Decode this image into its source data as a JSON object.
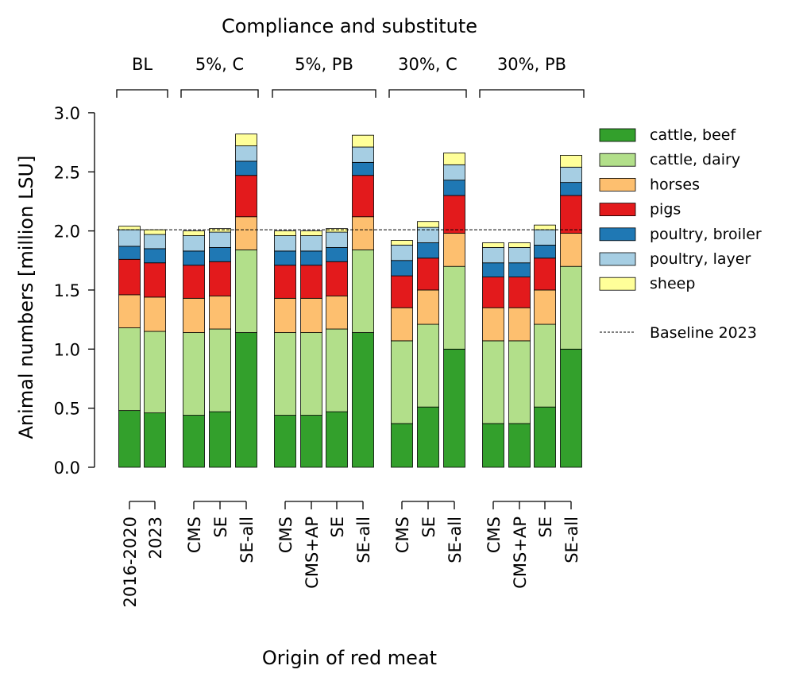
{
  "chart_data": {
    "type": "bar",
    "stacked": true,
    "title": "Compliance and substitute",
    "xlabel": "Origin of red meat",
    "ylabel": "Animal numbers [million LSU]",
    "ylim": [
      0,
      3.0
    ],
    "yticks": [
      "0.0",
      "0.5",
      "1.0",
      "1.5",
      "2.0",
      "2.5",
      "3.0"
    ],
    "groups": [
      {
        "label": "BL",
        "categories": [
          "2016-2020",
          "2023"
        ]
      },
      {
        "label": "5%, C",
        "categories": [
          "CMS",
          "SE",
          "SE-all"
        ]
      },
      {
        "label": "5%, PB",
        "categories": [
          "CMS",
          "CMS+AP",
          "SE",
          "SE-all"
        ]
      },
      {
        "label": "30%, C",
        "categories": [
          "CMS",
          "SE",
          "SE-all"
        ]
      },
      {
        "label": "30%, PB",
        "categories": [
          "CMS",
          "CMS+AP",
          "SE",
          "SE-all"
        ]
      }
    ],
    "series": [
      {
        "name": "cattle, beef",
        "color": "#33a02c",
        "values": [
          0.48,
          0.46,
          0.44,
          0.47,
          1.14,
          0.44,
          0.44,
          0.47,
          1.14,
          0.37,
          0.51,
          1.0,
          0.37,
          0.37,
          0.51,
          1.0
        ]
      },
      {
        "name": "cattle, dairy",
        "color": "#b2df8a",
        "values": [
          0.7,
          0.69,
          0.7,
          0.7,
          0.7,
          0.7,
          0.7,
          0.7,
          0.7,
          0.7,
          0.7,
          0.7,
          0.7,
          0.7,
          0.7,
          0.7
        ]
      },
      {
        "name": "horses",
        "color": "#fdbf6f",
        "values": [
          0.28,
          0.29,
          0.29,
          0.28,
          0.28,
          0.29,
          0.29,
          0.28,
          0.28,
          0.28,
          0.29,
          0.28,
          0.28,
          0.28,
          0.29,
          0.28
        ]
      },
      {
        "name": "pigs",
        "color": "#e31a1c",
        "values": [
          0.3,
          0.29,
          0.28,
          0.29,
          0.35,
          0.28,
          0.28,
          0.29,
          0.35,
          0.27,
          0.27,
          0.32,
          0.26,
          0.26,
          0.27,
          0.32
        ]
      },
      {
        "name": "poultry, broiler",
        "color": "#1f78b4",
        "values": [
          0.11,
          0.12,
          0.12,
          0.12,
          0.12,
          0.12,
          0.12,
          0.12,
          0.11,
          0.13,
          0.13,
          0.13,
          0.12,
          0.12,
          0.11,
          0.11
        ]
      },
      {
        "name": "poultry, layer",
        "color": "#a6cee3",
        "values": [
          0.14,
          0.12,
          0.13,
          0.13,
          0.13,
          0.13,
          0.13,
          0.13,
          0.13,
          0.13,
          0.13,
          0.13,
          0.13,
          0.13,
          0.13,
          0.13
        ]
      },
      {
        "name": "sheep",
        "color": "#ffff99",
        "values": [
          0.03,
          0.04,
          0.04,
          0.03,
          0.1,
          0.04,
          0.04,
          0.03,
          0.1,
          0.04,
          0.05,
          0.1,
          0.04,
          0.04,
          0.04,
          0.1
        ]
      }
    ],
    "baseline": {
      "label": "Baseline 2023",
      "value": 2.01
    },
    "grid": false,
    "legend_position": "right"
  }
}
